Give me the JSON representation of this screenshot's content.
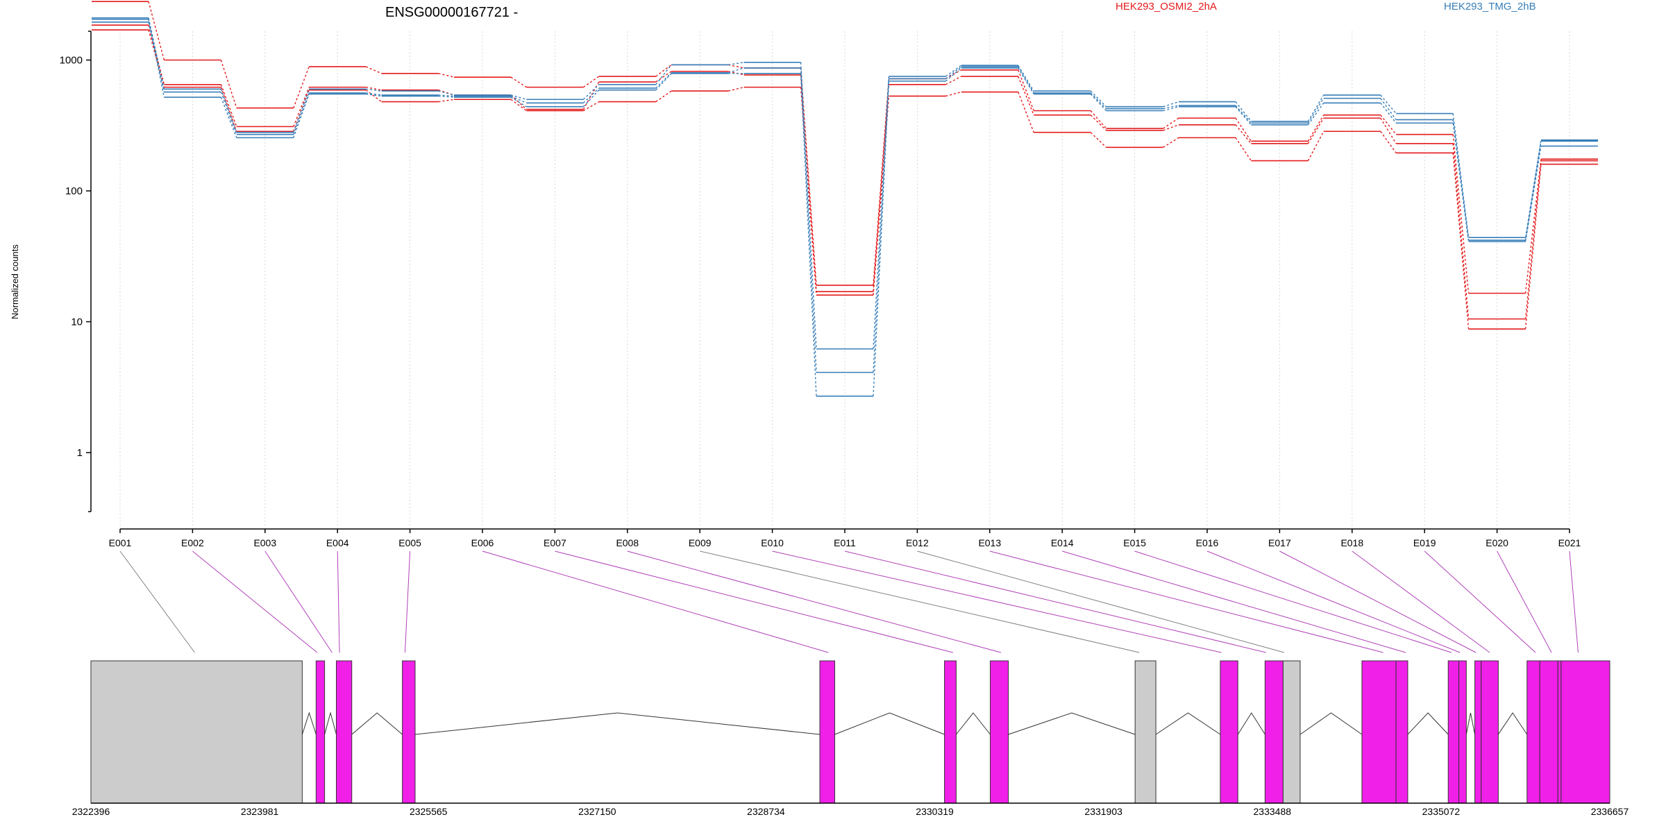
{
  "chart_data": {
    "type": "line",
    "title": "ENSG00000167721 -",
    "ylabel": "Normalized counts",
    "y_scale": "log",
    "y_tick_labels": [
      "1",
      "10",
      "100",
      "1000"
    ],
    "y_ticks": [
      1,
      10,
      100,
      1000
    ],
    "grid": "vertical dotted lines at exon positions",
    "legend": [
      {
        "name": "HEK293_OSMI2_2hA",
        "color": "#e41a1c"
      },
      {
        "name": "HEK293_TMG_2hB",
        "color": "#377eb8"
      }
    ],
    "categories": [
      "E001",
      "E002",
      "E003",
      "E004",
      "E005",
      "E006",
      "E007",
      "E008",
      "E009",
      "E010",
      "E011",
      "E012",
      "E013",
      "E014",
      "E015",
      "E016",
      "E017",
      "E018",
      "E019",
      "E020",
      "E021"
    ],
    "series": [
      {
        "group": "HEK293_OSMI2_2hA",
        "color": "#e41a1c",
        "values": [
          2800,
          1000,
          430,
          890,
          790,
          740,
          620,
          750,
          920,
          870,
          19,
          720,
          840,
          410,
          300,
          360,
          240,
          380,
          270,
          16.5,
          175
        ]
      },
      {
        "group": "HEK293_OSMI2_2hA",
        "color": "#e41a1c",
        "values": [
          1850,
          650,
          310,
          620,
          590,
          540,
          420,
          680,
          820,
          770,
          17,
          650,
          750,
          380,
          290,
          320,
          230,
          360,
          230,
          10.5,
          170
        ]
      },
      {
        "group": "HEK293_OSMI2_2hA",
        "color": "#e41a1c",
        "values": [
          1700,
          620,
          285,
          590,
          480,
          500,
          410,
          480,
          580,
          620,
          16,
          530,
          570,
          280,
          215,
          255,
          170,
          285,
          195,
          8.8,
          160
        ]
      },
      {
        "group": "HEK293_TMG_2hB",
        "color": "#377eb8",
        "values": [
          2100,
          600,
          280,
          600,
          580,
          540,
          500,
          650,
          920,
          960,
          6.2,
          750,
          910,
          580,
          440,
          480,
          340,
          540,
          390,
          44,
          245
        ]
      },
      {
        "group": "HEK293_TMG_2hB",
        "color": "#377eb8",
        "values": [
          1950,
          570,
          270,
          560,
          540,
          530,
          470,
          610,
          800,
          870,
          4.1,
          720,
          890,
          560,
          425,
          450,
          330,
          510,
          350,
          42,
          240
        ]
      },
      {
        "group": "HEK293_TMG_2hB",
        "color": "#377eb8",
        "values": [
          2050,
          520,
          255,
          550,
          530,
          520,
          440,
          590,
          790,
          790,
          2.7,
          690,
          870,
          550,
          410,
          440,
          320,
          470,
          330,
          41,
          220
        ]
      }
    ],
    "gene_track": {
      "coordinate_labels": [
        "2322396",
        "2323981",
        "2325565",
        "2327150",
        "2328734",
        "2330319",
        "2331903",
        "2333488",
        "2335072",
        "2336657"
      ],
      "range": [
        2322396,
        2336657
      ],
      "exon_colors": {
        "tested": "#f020e8",
        "untested": "#cccccc"
      },
      "exons": [
        {
          "start": 2322396,
          "end": 2324380,
          "tested": false
        },
        {
          "start": 2324510,
          "end": 2324590,
          "tested": true
        },
        {
          "start": 2324700,
          "end": 2324845,
          "tested": true
        },
        {
          "start": 2325320,
          "end": 2325440,
          "tested": true
        },
        {
          "start": 2329240,
          "end": 2329380,
          "tested": true
        },
        {
          "start": 2330410,
          "end": 2330520,
          "tested": true
        },
        {
          "start": 2330840,
          "end": 2331010,
          "tested": true
        },
        {
          "start": 2332200,
          "end": 2332395,
          "tested": false
        },
        {
          "start": 2333000,
          "end": 2333165,
          "tested": true
        },
        {
          "start": 2333420,
          "end": 2333590,
          "tested": true
        },
        {
          "start": 2333590,
          "end": 2333750,
          "tested": false
        },
        {
          "start": 2334330,
          "end": 2334650,
          "tested": true
        },
        {
          "start": 2334650,
          "end": 2334760,
          "tested": true
        },
        {
          "start": 2335140,
          "end": 2335240,
          "tested": true
        },
        {
          "start": 2335240,
          "end": 2335310,
          "tested": true
        },
        {
          "start": 2335390,
          "end": 2335450,
          "tested": true
        },
        {
          "start": 2335450,
          "end": 2335610,
          "tested": true
        },
        {
          "start": 2335880,
          "end": 2336000,
          "tested": true
        },
        {
          "start": 2336000,
          "end": 2336170,
          "tested": true
        },
        {
          "start": 2336170,
          "end": 2336200,
          "tested": true
        },
        {
          "start": 2336200,
          "end": 2336657,
          "tested": true
        }
      ],
      "connectors": [
        {
          "exon": "E001",
          "pos": 2323370,
          "tested": false
        },
        {
          "exon": "E002",
          "pos": 2324520,
          "tested": true
        },
        {
          "exon": "E003",
          "pos": 2324660,
          "tested": true
        },
        {
          "exon": "E004",
          "pos": 2324730,
          "tested": true
        },
        {
          "exon": "E005",
          "pos": 2325345,
          "tested": true
        },
        {
          "exon": "E006",
          "pos": 2329320,
          "tested": true
        },
        {
          "exon": "E007",
          "pos": 2330490,
          "tested": true
        },
        {
          "exon": "E008",
          "pos": 2330940,
          "tested": true
        },
        {
          "exon": "E009",
          "pos": 2332240,
          "tested": false
        },
        {
          "exon": "E010",
          "pos": 2333010,
          "tested": true
        },
        {
          "exon": "E011",
          "pos": 2333430,
          "tested": true
        },
        {
          "exon": "E012",
          "pos": 2333600,
          "tested": false
        },
        {
          "exon": "E013",
          "pos": 2334530,
          "tested": true
        },
        {
          "exon": "E014",
          "pos": 2334740,
          "tested": true
        },
        {
          "exon": "E015",
          "pos": 2335170,
          "tested": true
        },
        {
          "exon": "E016",
          "pos": 2335250,
          "tested": true
        },
        {
          "exon": "E017",
          "pos": 2335400,
          "tested": true
        },
        {
          "exon": "E018",
          "pos": 2335530,
          "tested": true
        },
        {
          "exon": "E019",
          "pos": 2335960,
          "tested": true
        },
        {
          "exon": "E020",
          "pos": 2336110,
          "tested": true
        },
        {
          "exon": "E021",
          "pos": 2336360,
          "tested": true
        }
      ]
    }
  }
}
